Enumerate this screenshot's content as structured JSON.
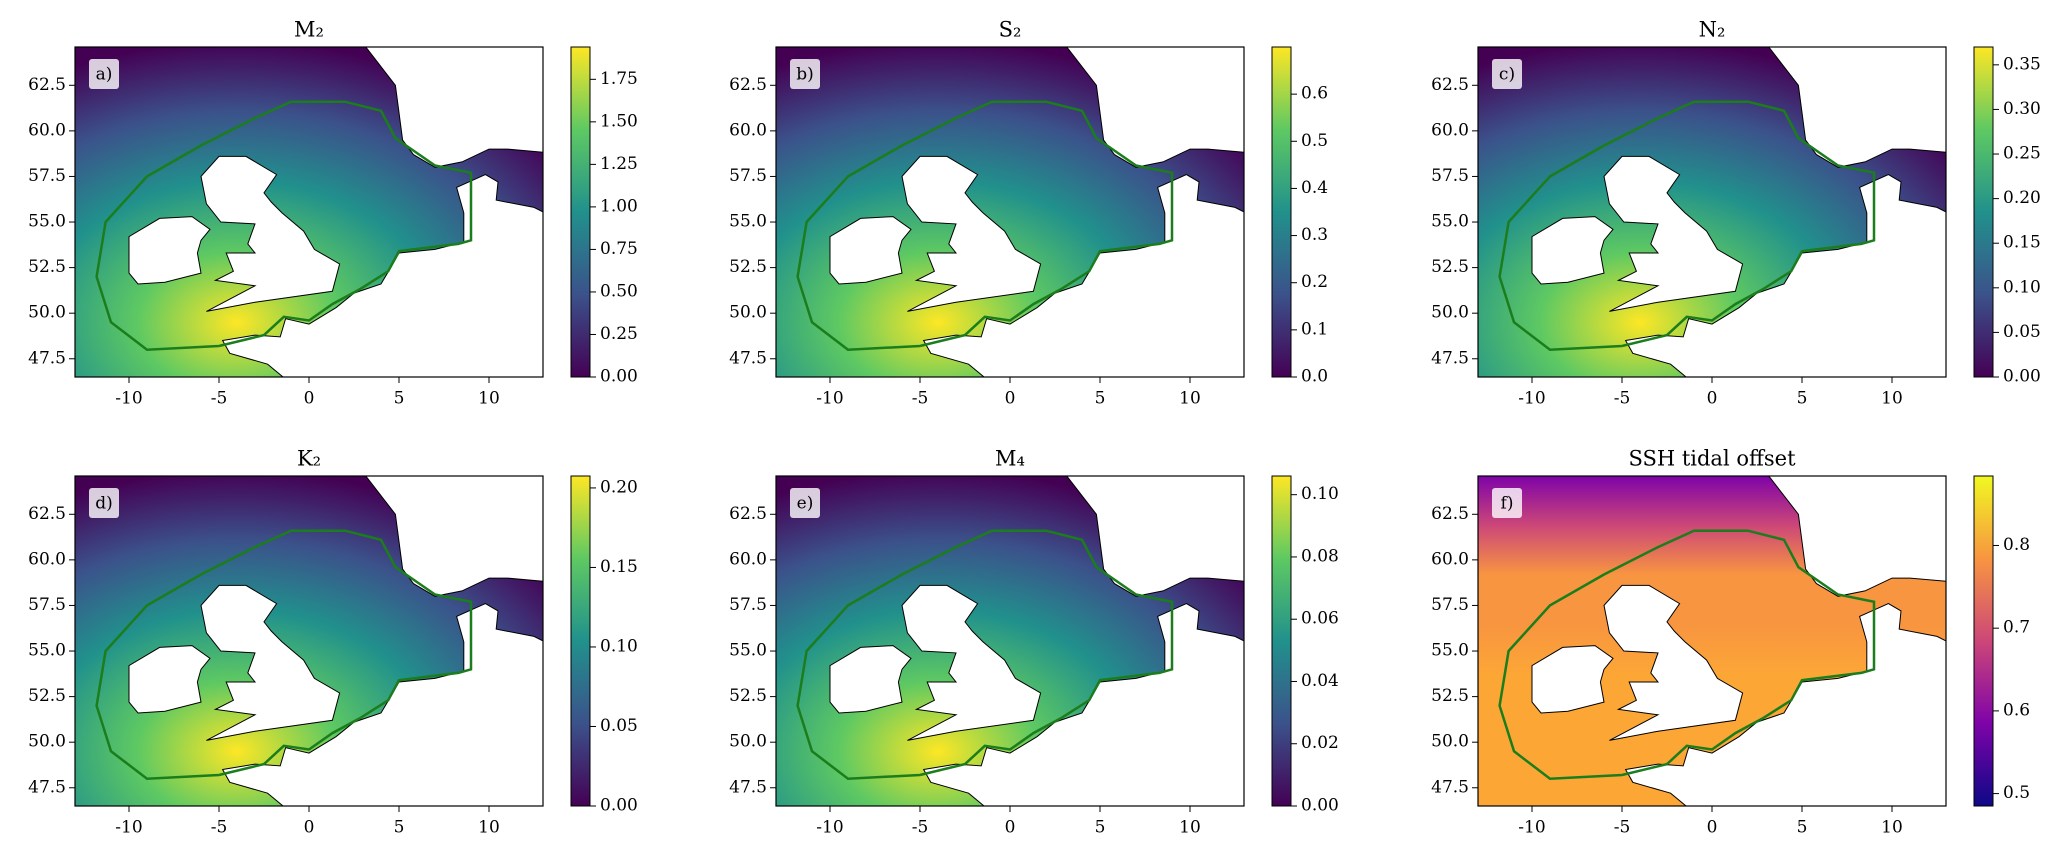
{
  "chart_data": [
    {
      "type": "map",
      "title": "M₂",
      "panel_label": "a)",
      "xlim": [
        -13,
        13
      ],
      "ylim": [
        46.5,
        64.6
      ],
      "xticks": [
        -10,
        -5,
        0,
        5,
        10
      ],
      "yticks": [
        47.5,
        {
          "value": 50,
          "label": "50.0"
        },
        52.5,
        {
          "value": 55,
          "label": "55.0"
        },
        57.5,
        {
          "value": 60,
          "label": "60.0"
        },
        62.5
      ],
      "colorbar": {
        "colormap": "viridis",
        "lim": [
          0,
          1.94
        ],
        "ticks": [
          {
            "value": 0,
            "label": "0.00"
          },
          0.25,
          {
            "value": 0.5,
            "label": "0.50"
          },
          0.75,
          {
            "value": 1,
            "label": "1.00"
          },
          1.25,
          {
            "value": 1.5,
            "label": "1.50"
          },
          1.75
        ]
      }
    },
    {
      "type": "map",
      "title": "S₂",
      "panel_label": "b)",
      "xlim": [
        -13,
        13
      ],
      "ylim": [
        46.5,
        64.6
      ],
      "xticks": [
        -10,
        -5,
        0,
        5,
        10
      ],
      "yticks": [
        47.5,
        {
          "value": 50,
          "label": "50.0"
        },
        52.5,
        {
          "value": 55,
          "label": "55.0"
        },
        57.5,
        {
          "value": 60,
          "label": "60.0"
        },
        62.5
      ],
      "colorbar": {
        "colormap": "viridis",
        "lim": [
          0,
          0.7
        ],
        "ticks": [
          {
            "value": 0,
            "label": "0.0"
          },
          0.1,
          0.2,
          0.3,
          0.4,
          0.5,
          0.6
        ]
      }
    },
    {
      "type": "map",
      "title": "N₂",
      "panel_label": "c)",
      "xlim": [
        -13,
        13
      ],
      "ylim": [
        46.5,
        64.6
      ],
      "xticks": [
        -10,
        -5,
        0,
        5,
        10
      ],
      "yticks": [
        47.5,
        {
          "value": 50,
          "label": "50.0"
        },
        52.5,
        {
          "value": 55,
          "label": "55.0"
        },
        57.5,
        {
          "value": 60,
          "label": "60.0"
        },
        62.5
      ],
      "colorbar": {
        "colormap": "viridis",
        "lim": [
          0,
          0.37
        ],
        "ticks": [
          {
            "value": 0,
            "label": "0.00"
          },
          0.05,
          {
            "value": 0.1,
            "label": "0.10"
          },
          0.15,
          {
            "value": 0.2,
            "label": "0.20"
          },
          0.25,
          {
            "value": 0.3,
            "label": "0.30"
          },
          0.35
        ]
      }
    },
    {
      "type": "map",
      "title": "K₂",
      "panel_label": "d)",
      "xlim": [
        -13,
        13
      ],
      "ylim": [
        46.5,
        64.6
      ],
      "xticks": [
        -10,
        -5,
        0,
        5,
        10
      ],
      "yticks": [
        47.5,
        {
          "value": 50,
          "label": "50.0"
        },
        52.5,
        {
          "value": 55,
          "label": "55.0"
        },
        57.5,
        {
          "value": 60,
          "label": "60.0"
        },
        62.5
      ],
      "colorbar": {
        "colormap": "viridis",
        "lim": [
          0,
          0.2075
        ],
        "ticks": [
          {
            "value": 0,
            "label": "0.00"
          },
          0.05,
          {
            "value": 0.1,
            "label": "0.10"
          },
          0.15,
          {
            "value": 0.2,
            "label": "0.20"
          }
        ]
      }
    },
    {
      "type": "map",
      "title": "M₄",
      "panel_label": "e)",
      "xlim": [
        -13,
        13
      ],
      "ylim": [
        46.5,
        64.6
      ],
      "xticks": [
        -10,
        -5,
        0,
        5,
        10
      ],
      "yticks": [
        47.5,
        {
          "value": 50,
          "label": "50.0"
        },
        52.5,
        {
          "value": 55,
          "label": "55.0"
        },
        57.5,
        {
          "value": 60,
          "label": "60.0"
        },
        62.5
      ],
      "colorbar": {
        "colormap": "viridis",
        "lim": [
          0,
          0.106
        ],
        "ticks": [
          {
            "value": 0,
            "label": "0.00"
          },
          0.02,
          0.04,
          0.06,
          0.08,
          {
            "value": 0.1,
            "label": "0.10"
          }
        ]
      }
    },
    {
      "type": "map",
      "title": "SSH tidal offset",
      "panel_label": "f)",
      "xlim": [
        -13,
        13
      ],
      "ylim": [
        46.5,
        64.6
      ],
      "xticks": [
        -10,
        -5,
        0,
        5,
        10
      ],
      "yticks": [
        47.5,
        {
          "value": 50,
          "label": "50.0"
        },
        52.5,
        {
          "value": 55,
          "label": "55.0"
        },
        57.5,
        {
          "value": 60,
          "label": "60.0"
        },
        62.5
      ],
      "colorbar": {
        "colormap": "plasma",
        "lim": [
          0.485,
          0.884
        ],
        "ticks": [
          0.5,
          0.6,
          0.7,
          0.8
        ]
      }
    }
  ]
}
